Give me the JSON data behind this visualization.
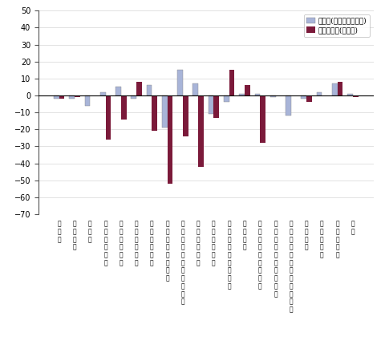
{
  "categories": [
    "鉱工業",
    "製造工業",
    "鉄鉰業",
    "非鉄金属工業",
    "金属製品工業",
    "一般機械工業",
    "電気機械工業",
    "情報通信機械工業",
    "電子部品･デバイス工業",
    "輸送機械工業",
    "精密機械工業",
    "素材･土石製品工業",
    "化学工業",
    "石油･石灰製品工業",
    "プラスチック製品工業",
    "パルプ･紙･紙加工品工業",
    "繊維工業",
    "食料品工業",
    "その他工業",
    "近業"
  ],
  "prev_month": [
    -2,
    -2,
    -6,
    2,
    5,
    -2,
    6,
    -19,
    15,
    7,
    -11,
    -4,
    1,
    1,
    -1,
    -12,
    -2,
    2,
    7,
    1
  ],
  "prev_year": [
    -2,
    -1,
    0,
    -26,
    -14,
    8,
    -21,
    -52,
    -24,
    -42,
    -13,
    15,
    6,
    -28,
    0,
    0,
    -4,
    0,
    8,
    -1
  ],
  "color_prev_month": "#a8b4d8",
  "color_prev_year": "#7b1a3a",
  "legend_prev_month": "前月比(季節調整済指数)",
  "legend_prev_year": "前年同月比(原指数)",
  "ylim": [
    -70,
    50
  ],
  "yticks": [
    -70,
    -60,
    -50,
    -40,
    -30,
    -20,
    -10,
    0,
    10,
    20,
    30,
    40,
    50
  ]
}
